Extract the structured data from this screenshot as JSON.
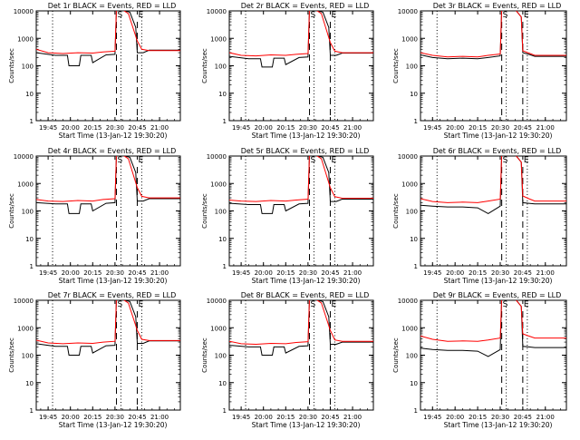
{
  "chart_data": [
    {
      "type": "line",
      "title": "Det 1r BLACK = Events, RED = LLD",
      "xlabel": "Start Time (13-Jan-12 19:30:20)",
      "ylabel": "Counts/sec",
      "ylog": true,
      "ylim": [
        1,
        10000
      ],
      "xlim": [
        "19:37",
        "21:14"
      ],
      "xticks": [
        "19:45",
        "20:00",
        "20:15",
        "20:30",
        "20:45",
        "21:00"
      ],
      "yticks": [
        "1",
        "10",
        "100",
        "1000",
        "10000"
      ],
      "markers": {
        "S": "20:31",
        "E": "20:45"
      },
      "guides_dotted": [
        "19:48",
        "20:34",
        "20:48"
      ],
      "guides_dashed": [
        "20:31",
        "20:45"
      ],
      "series": [
        {
          "name": "Events",
          "color": "#000000",
          "x": [
            "19:37",
            "19:50",
            "19:58",
            "19:59",
            "20:06",
            "20:07",
            "20:14",
            "20:15",
            "20:24",
            "20:30",
            "20:31",
            "20:40",
            "20:44",
            "20:45",
            "20:49",
            "20:53",
            "21:14"
          ],
          "y": [
            300,
            240,
            240,
            100,
            100,
            240,
            240,
            130,
            250,
            260,
            12000,
            9000,
            2500,
            300,
            300,
            370,
            370
          ]
        },
        {
          "name": "LLD",
          "color": "#ff0000",
          "x": [
            "19:37",
            "19:45",
            "19:55",
            "20:05",
            "20:15",
            "20:22",
            "20:30",
            "20:31",
            "20:34",
            "20:39",
            "20:45",
            "20:48",
            "20:53",
            "21:14"
          ],
          "y": [
            400,
            300,
            280,
            300,
            290,
            320,
            340,
            12000,
            12000,
            8000,
            800,
            400,
            360,
            360
          ]
        }
      ]
    },
    {
      "type": "line",
      "title": "Det 2r BLACK = Events, RED = LLD",
      "xlabel": "Start Time (13-Jan-12 19:30:20)",
      "ylabel": "Counts/sec",
      "ylog": true,
      "ylim": [
        1,
        10000
      ],
      "xlim": [
        "19:37",
        "21:14"
      ],
      "xticks": [
        "19:45",
        "20:00",
        "20:15",
        "20:30",
        "20:45",
        "21:00"
      ],
      "yticks": [
        "1",
        "10",
        "100",
        "1000",
        "10000"
      ],
      "markers": {
        "S": "20:31",
        "E": "20:45"
      },
      "guides_dotted": [
        "19:48",
        "20:34",
        "20:48"
      ],
      "guides_dashed": [
        "20:31",
        "20:45"
      ],
      "series": [
        {
          "name": "Events",
          "color": "#000000",
          "x": [
            "19:37",
            "19:50",
            "19:58",
            "19:59",
            "20:06",
            "20:07",
            "20:14",
            "20:15",
            "20:24",
            "20:30",
            "20:31",
            "20:40",
            "20:44",
            "20:45",
            "20:49",
            "20:53",
            "21:14"
          ],
          "y": [
            220,
            180,
            180,
            90,
            90,
            190,
            190,
            110,
            200,
            210,
            12000,
            9000,
            2500,
            240,
            240,
            290,
            290
          ]
        },
        {
          "name": "LLD",
          "color": "#ff0000",
          "x": [
            "19:37",
            "19:45",
            "19:55",
            "20:05",
            "20:15",
            "20:22",
            "20:30",
            "20:31",
            "20:34",
            "20:39",
            "20:45",
            "20:48",
            "20:53",
            "21:14"
          ],
          "y": [
            300,
            240,
            230,
            250,
            240,
            260,
            280,
            12000,
            12000,
            8000,
            700,
            340,
            300,
            300
          ]
        }
      ]
    },
    {
      "type": "line",
      "title": "Det 3r BLACK = Events, RED = LLD",
      "xlabel": "Start Time (13-Jan-12 19:30:20)",
      "ylabel": "Counts/sec",
      "ylog": true,
      "ylim": [
        1,
        10000
      ],
      "xlim": [
        "19:37",
        "21:14"
      ],
      "xticks": [
        "19:45",
        "20:00",
        "20:15",
        "20:30",
        "20:45",
        "21:00"
      ],
      "yticks": [
        "1",
        "10",
        "100",
        "1000",
        "10000"
      ],
      "markers": {
        "S": "20:31",
        "E": "20:45"
      },
      "guides_dotted": [
        "19:48",
        "20:34",
        "20:48"
      ],
      "guides_dashed": [
        "20:31",
        "20:45"
      ],
      "series": [
        {
          "name": "Events",
          "color": "#000000",
          "x": [
            "19:37",
            "19:45",
            "19:55",
            "20:05",
            "20:15",
            "20:22",
            "20:30",
            "20:31",
            "20:40",
            "20:44",
            "20:45",
            "20:49",
            "20:53",
            "21:14"
          ],
          "y": [
            250,
            200,
            180,
            190,
            180,
            200,
            230,
            12000,
            11000,
            6000,
            300,
            260,
            220,
            220
          ]
        },
        {
          "name": "LLD",
          "color": "#ff0000",
          "x": [
            "19:37",
            "19:45",
            "19:55",
            "20:05",
            "20:15",
            "20:22",
            "20:30",
            "20:31",
            "20:40",
            "20:44",
            "20:45",
            "20:49",
            "20:53",
            "21:14"
          ],
          "y": [
            300,
            240,
            210,
            220,
            210,
            240,
            270,
            12000,
            11000,
            6000,
            350,
            290,
            240,
            240
          ]
        }
      ]
    },
    {
      "type": "line",
      "title": "Det 4r BLACK = Events, RED = LLD",
      "xlabel": "Start Time (13-Jan-12 19:30:20)",
      "ylabel": "Counts/sec",
      "ylog": true,
      "ylim": [
        1,
        10000
      ],
      "xlim": [
        "19:37",
        "21:14"
      ],
      "xticks": [
        "19:45",
        "20:00",
        "20:15",
        "20:30",
        "20:45",
        "21:00"
      ],
      "yticks": [
        "1",
        "10",
        "100",
        "1000",
        "10000"
      ],
      "markers": {
        "S": "20:31",
        "E": "20:45"
      },
      "guides_dotted": [
        "19:48",
        "20:34",
        "20:48"
      ],
      "guides_dashed": [
        "20:31",
        "20:45"
      ],
      "series": [
        {
          "name": "Events",
          "color": "#000000",
          "x": [
            "19:37",
            "19:50",
            "19:58",
            "19:59",
            "20:06",
            "20:07",
            "20:14",
            "20:15",
            "20:24",
            "20:30",
            "20:31",
            "20:40",
            "20:44",
            "20:45",
            "20:49",
            "20:53",
            "21:14"
          ],
          "y": [
            200,
            180,
            180,
            80,
            80,
            180,
            180,
            100,
            190,
            200,
            12000,
            9000,
            2500,
            230,
            230,
            280,
            280
          ]
        },
        {
          "name": "LLD",
          "color": "#ff0000",
          "x": [
            "19:37",
            "19:45",
            "19:55",
            "20:05",
            "20:15",
            "20:22",
            "20:30",
            "20:31",
            "20:34",
            "20:39",
            "20:45",
            "20:48",
            "20:53",
            "21:14"
          ],
          "y": [
            260,
            230,
            220,
            240,
            230,
            260,
            280,
            12000,
            12000,
            8000,
            700,
            340,
            300,
            300
          ]
        }
      ]
    },
    {
      "type": "line",
      "title": "Det 5r BLACK = Events, RED = LLD",
      "xlabel": "Start Time (13-Jan-12 19:30:20)",
      "ylabel": "Counts/sec",
      "ylog": true,
      "ylim": [
        1,
        10000
      ],
      "xlim": [
        "19:37",
        "21:14"
      ],
      "xticks": [
        "19:45",
        "20:00",
        "20:15",
        "20:30",
        "20:45",
        "21:00"
      ],
      "yticks": [
        "1",
        "10",
        "100",
        "1000",
        "10000"
      ],
      "markers": {
        "S": "20:31",
        "E": "20:45"
      },
      "guides_dotted": [
        "19:48",
        "20:34",
        "20:48"
      ],
      "guides_dashed": [
        "20:31",
        "20:45"
      ],
      "series": [
        {
          "name": "Events",
          "color": "#000000",
          "x": [
            "19:37",
            "19:50",
            "19:58",
            "19:59",
            "20:06",
            "20:07",
            "20:14",
            "20:15",
            "20:24",
            "20:30",
            "20:31",
            "20:40",
            "20:44",
            "20:45",
            "20:49",
            "20:53",
            "21:14"
          ],
          "y": [
            190,
            170,
            170,
            80,
            80,
            170,
            170,
            100,
            180,
            190,
            12000,
            9000,
            2500,
            220,
            220,
            270,
            270
          ]
        },
        {
          "name": "LLD",
          "color": "#ff0000",
          "x": [
            "19:37",
            "19:45",
            "19:55",
            "20:05",
            "20:15",
            "20:22",
            "20:30",
            "20:31",
            "20:34",
            "20:39",
            "20:45",
            "20:48",
            "20:53",
            "21:14"
          ],
          "y": [
            250,
            230,
            220,
            240,
            230,
            250,
            270,
            12000,
            12000,
            8000,
            700,
            330,
            290,
            290
          ]
        }
      ]
    },
    {
      "type": "line",
      "title": "Det 6r BLACK = Events, RED = LLD",
      "xlabel": "Start Time (13-Jan-12 19:30:20)",
      "ylabel": "Counts/sec",
      "ylog": true,
      "ylim": [
        1,
        10000
      ],
      "xlim": [
        "19:37",
        "21:14"
      ],
      "xticks": [
        "19:45",
        "20:00",
        "20:15",
        "20:30",
        "20:45",
        "21:00"
      ],
      "yticks": [
        "1",
        "10",
        "100",
        "1000",
        "10000"
      ],
      "markers": {
        "S": "20:31",
        "E": "20:45"
      },
      "guides_dotted": [
        "19:48",
        "20:34",
        "20:48"
      ],
      "guides_dashed": [
        "20:31",
        "20:45"
      ],
      "series": [
        {
          "name": "Events",
          "color": "#000000",
          "x": [
            "19:37",
            "19:45",
            "19:55",
            "20:05",
            "20:15",
            "20:22",
            "20:30",
            "20:31",
            "20:40",
            "20:44",
            "20:45",
            "20:49",
            "20:53",
            "21:14"
          ],
          "y": [
            160,
            150,
            140,
            140,
            130,
            80,
            150,
            12000,
            11000,
            6000,
            200,
            190,
            180,
            180
          ]
        },
        {
          "name": "LLD",
          "color": "#ff0000",
          "x": [
            "19:37",
            "19:45",
            "19:55",
            "20:05",
            "20:15",
            "20:22",
            "20:30",
            "20:31",
            "20:40",
            "20:44",
            "20:45",
            "20:49",
            "20:53",
            "21:14"
          ],
          "y": [
            280,
            220,
            200,
            210,
            200,
            230,
            270,
            12000,
            11000,
            6000,
            350,
            280,
            230,
            230
          ]
        }
      ]
    },
    {
      "type": "line",
      "title": "Det 7r BLACK = Events, RED = LLD",
      "xlabel": "Start Time (13-Jan-12 19:30:20)",
      "ylabel": "Counts/sec",
      "ylog": true,
      "ylim": [
        1,
        10000
      ],
      "xlim": [
        "19:37",
        "21:14"
      ],
      "xticks": [
        "19:45",
        "20:00",
        "20:15",
        "20:30",
        "20:45",
        "21:00"
      ],
      "yticks": [
        "1",
        "10",
        "100",
        "1000",
        "10000"
      ],
      "markers": {
        "S": "20:31",
        "E": "20:45"
      },
      "guides_dotted": [
        "19:48",
        "20:34",
        "20:48"
      ],
      "guides_dashed": [
        "20:31",
        "20:45"
      ],
      "series": [
        {
          "name": "Events",
          "color": "#000000",
          "x": [
            "19:37",
            "19:50",
            "19:58",
            "19:59",
            "20:06",
            "20:07",
            "20:14",
            "20:15",
            "20:24",
            "20:30",
            "20:31",
            "20:40",
            "20:44",
            "20:45",
            "20:49",
            "20:53",
            "21:14"
          ],
          "y": [
            260,
            210,
            210,
            100,
            100,
            210,
            210,
            120,
            220,
            230,
            12000,
            9000,
            2500,
            270,
            270,
            330,
            330
          ]
        },
        {
          "name": "LLD",
          "color": "#ff0000",
          "x": [
            "19:37",
            "19:45",
            "19:55",
            "20:05",
            "20:15",
            "20:22",
            "20:30",
            "20:31",
            "20:34",
            "20:39",
            "20:45",
            "20:48",
            "20:53",
            "21:14"
          ],
          "y": [
            350,
            280,
            260,
            280,
            270,
            300,
            320,
            12000,
            12000,
            8000,
            800,
            380,
            340,
            340
          ]
        }
      ]
    },
    {
      "type": "line",
      "title": "Det 8r BLACK = Events, RED = LLD",
      "xlabel": "Start Time (13-Jan-12 19:30:20)",
      "ylabel": "Counts/sec",
      "ylog": true,
      "ylim": [
        1,
        10000
      ],
      "xlim": [
        "19:37",
        "21:14"
      ],
      "xticks": [
        "19:45",
        "20:00",
        "20:15",
        "20:30",
        "20:45",
        "21:00"
      ],
      "yticks": [
        "1",
        "10",
        "100",
        "1000",
        "10000"
      ],
      "markers": {
        "S": "20:31",
        "E": "20:45"
      },
      "guides_dotted": [
        "19:48",
        "20:34",
        "20:48"
      ],
      "guides_dashed": [
        "20:31",
        "20:45"
      ],
      "series": [
        {
          "name": "Events",
          "color": "#000000",
          "x": [
            "19:37",
            "19:50",
            "19:58",
            "19:59",
            "20:06",
            "20:07",
            "20:14",
            "20:15",
            "20:24",
            "20:30",
            "20:31",
            "20:40",
            "20:44",
            "20:45",
            "20:49",
            "20:53",
            "21:14"
          ],
          "y": [
            230,
            200,
            200,
            100,
            100,
            200,
            200,
            120,
            210,
            220,
            12000,
            9000,
            2500,
            250,
            250,
            300,
            300
          ]
        },
        {
          "name": "LLD",
          "color": "#ff0000",
          "x": [
            "19:37",
            "19:45",
            "19:55",
            "20:05",
            "20:15",
            "20:22",
            "20:30",
            "20:31",
            "20:34",
            "20:39",
            "20:45",
            "20:48",
            "20:53",
            "21:14"
          ],
          "y": [
            320,
            260,
            250,
            270,
            260,
            290,
            310,
            12000,
            12000,
            8000,
            800,
            360,
            320,
            320
          ]
        }
      ]
    },
    {
      "type": "line",
      "title": "Det 9r BLACK = Events, RED = LLD",
      "xlabel": "Start Time (13-Jan-12 19:30:20)",
      "ylabel": "Counts/sec",
      "ylog": true,
      "ylim": [
        1,
        10000
      ],
      "xlim": [
        "19:37",
        "21:14"
      ],
      "xticks": [
        "19:45",
        "20:00",
        "20:15",
        "20:30",
        "20:45",
        "21:00"
      ],
      "yticks": [
        "1",
        "10",
        "100",
        "1000",
        "10000"
      ],
      "markers": {
        "S": "20:31",
        "E": "20:45"
      },
      "guides_dotted": [
        "19:48",
        "20:34",
        "20:48"
      ],
      "guides_dashed": [
        "20:31",
        "20:45"
      ],
      "series": [
        {
          "name": "Events",
          "color": "#000000",
          "x": [
            "19:37",
            "19:45",
            "19:55",
            "20:05",
            "20:15",
            "20:22",
            "20:30",
            "20:31",
            "20:40",
            "20:44",
            "20:45",
            "20:49",
            "20:53",
            "21:14"
          ],
          "y": [
            180,
            160,
            150,
            150,
            140,
            90,
            160,
            12000,
            11000,
            6000,
            210,
            200,
            190,
            190
          ]
        },
        {
          "name": "LLD",
          "color": "#ff0000",
          "x": [
            "19:37",
            "19:45",
            "19:55",
            "20:05",
            "20:15",
            "20:22",
            "20:30",
            "20:31",
            "20:40",
            "20:44",
            "20:45",
            "20:49",
            "20:53",
            "21:14"
          ],
          "y": [
            500,
            380,
            320,
            330,
            320,
            360,
            420,
            12000,
            11000,
            6000,
            600,
            500,
            420,
            420
          ]
        }
      ]
    }
  ]
}
